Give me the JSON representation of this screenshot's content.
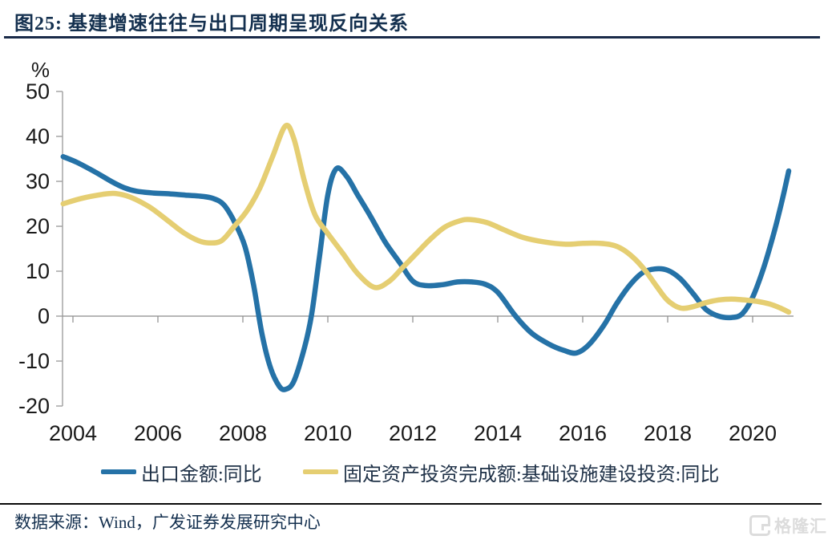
{
  "figure": {
    "title": "图25:  基建增速往往与出口周期呈现反向关系",
    "source": "数据来源：Wind，广发证券发展研究中心",
    "watermark": "格隆汇"
  },
  "colors": {
    "export_line": "#2572A7",
    "infra_line": "#E5CE72",
    "title_navy": "#14304F",
    "axis_gray": "#A0A0A0",
    "zero_line_gray": "#8C8C8C",
    "tick_label_black": "#1A1A1A",
    "watermark_gray": "#DCDCDC"
  },
  "chart_data": {
    "type": "line",
    "title": "图25: 基建增速往往与出口周期呈现反向关系",
    "xlabel": "",
    "ylabel": "%",
    "ylim": [
      -20,
      50
    ],
    "yticks": [
      50,
      40,
      30,
      20,
      10,
      0,
      -10,
      -20
    ],
    "xticks": [
      2004,
      2006,
      2008,
      2010,
      2012,
      2014,
      2016,
      2018,
      2020
    ],
    "x_range": [
      2003.77,
      2020.85
    ],
    "grid": false,
    "zero_axis_line": true,
    "legend_position": "bottom",
    "series": [
      {
        "name": "出口金额:同比",
        "color": "#2572A7",
        "points": [
          [
            2003.77,
            35.5
          ],
          [
            2004.1,
            34.2
          ],
          [
            2004.5,
            32.2
          ],
          [
            2004.9,
            30.0
          ],
          [
            2005.2,
            28.6
          ],
          [
            2005.5,
            27.8
          ],
          [
            2005.9,
            27.4
          ],
          [
            2006.3,
            27.2
          ],
          [
            2006.7,
            26.9
          ],
          [
            2007.0,
            26.7
          ],
          [
            2007.3,
            26.2
          ],
          [
            2007.55,
            24.8
          ],
          [
            2007.8,
            21.0
          ],
          [
            2008.05,
            15.5
          ],
          [
            2008.25,
            7.0
          ],
          [
            2008.45,
            -4.0
          ],
          [
            2008.65,
            -11.5
          ],
          [
            2008.85,
            -15.5
          ],
          [
            2009.0,
            -16.3
          ],
          [
            2009.2,
            -14.5
          ],
          [
            2009.45,
            -7.0
          ],
          [
            2009.62,
            0.5
          ],
          [
            2009.8,
            13.0
          ],
          [
            2010.0,
            27.0
          ],
          [
            2010.2,
            32.8
          ],
          [
            2010.45,
            31.0
          ],
          [
            2010.7,
            27.0
          ],
          [
            2011.0,
            22.3
          ],
          [
            2011.35,
            16.5
          ],
          [
            2011.7,
            11.8
          ],
          [
            2012.0,
            7.8
          ],
          [
            2012.3,
            6.8
          ],
          [
            2012.7,
            7.0
          ],
          [
            2013.05,
            7.6
          ],
          [
            2013.4,
            7.6
          ],
          [
            2013.7,
            7.1
          ],
          [
            2014.0,
            5.3
          ],
          [
            2014.42,
            0.0
          ],
          [
            2014.8,
            -3.8
          ],
          [
            2015.2,
            -6.2
          ],
          [
            2015.55,
            -7.6
          ],
          [
            2015.85,
            -8.2
          ],
          [
            2016.15,
            -6.3
          ],
          [
            2016.5,
            -2.0
          ],
          [
            2016.8,
            2.8
          ],
          [
            2017.1,
            6.8
          ],
          [
            2017.4,
            9.6
          ],
          [
            2017.7,
            10.5
          ],
          [
            2018.0,
            10.2
          ],
          [
            2018.3,
            8.3
          ],
          [
            2018.6,
            5.0
          ],
          [
            2018.9,
            1.5
          ],
          [
            2019.2,
            0.0
          ],
          [
            2019.5,
            -0.3
          ],
          [
            2019.75,
            0.5
          ],
          [
            2020.0,
            4.2
          ],
          [
            2020.25,
            10.5
          ],
          [
            2020.5,
            18.5
          ],
          [
            2020.7,
            26.0
          ],
          [
            2020.85,
            32.3
          ]
        ]
      },
      {
        "name": "固定资产投资完成额:基础设施建设投资:同比",
        "color": "#E5CE72",
        "points": [
          [
            2003.77,
            25.0
          ],
          [
            2004.2,
            26.2
          ],
          [
            2004.7,
            27.1
          ],
          [
            2005.0,
            27.3
          ],
          [
            2005.35,
            26.5
          ],
          [
            2005.8,
            24.3
          ],
          [
            2006.2,
            21.5
          ],
          [
            2006.6,
            18.6
          ],
          [
            2006.95,
            16.8
          ],
          [
            2007.2,
            16.3
          ],
          [
            2007.5,
            16.8
          ],
          [
            2007.8,
            20.0
          ],
          [
            2008.1,
            23.5
          ],
          [
            2008.4,
            28.5
          ],
          [
            2008.7,
            35.5
          ],
          [
            2009.0,
            42.3
          ],
          [
            2009.2,
            39.5
          ],
          [
            2009.45,
            30.0
          ],
          [
            2009.7,
            22.5
          ],
          [
            2010.0,
            18.4
          ],
          [
            2010.35,
            14.0
          ],
          [
            2010.7,
            9.5
          ],
          [
            2011.1,
            6.4
          ],
          [
            2011.45,
            7.8
          ],
          [
            2011.77,
            10.9
          ],
          [
            2012.05,
            13.6
          ],
          [
            2012.4,
            17.0
          ],
          [
            2012.75,
            19.8
          ],
          [
            2013.1,
            21.2
          ],
          [
            2013.35,
            21.5
          ],
          [
            2013.75,
            20.8
          ],
          [
            2014.15,
            19.2
          ],
          [
            2014.6,
            17.5
          ],
          [
            2015.1,
            16.5
          ],
          [
            2015.6,
            16.0
          ],
          [
            2016.0,
            16.2
          ],
          [
            2016.4,
            16.2
          ],
          [
            2016.75,
            15.7
          ],
          [
            2017.0,
            14.5
          ],
          [
            2017.25,
            12.5
          ],
          [
            2017.5,
            9.8
          ],
          [
            2017.75,
            6.5
          ],
          [
            2018.0,
            3.5
          ],
          [
            2018.3,
            1.8
          ],
          [
            2018.6,
            2.1
          ],
          [
            2018.9,
            3.0
          ],
          [
            2019.2,
            3.6
          ],
          [
            2019.5,
            3.8
          ],
          [
            2019.8,
            3.6
          ],
          [
            2020.1,
            3.3
          ],
          [
            2020.4,
            2.7
          ],
          [
            2020.65,
            1.8
          ],
          [
            2020.85,
            0.9
          ]
        ]
      }
    ]
  }
}
